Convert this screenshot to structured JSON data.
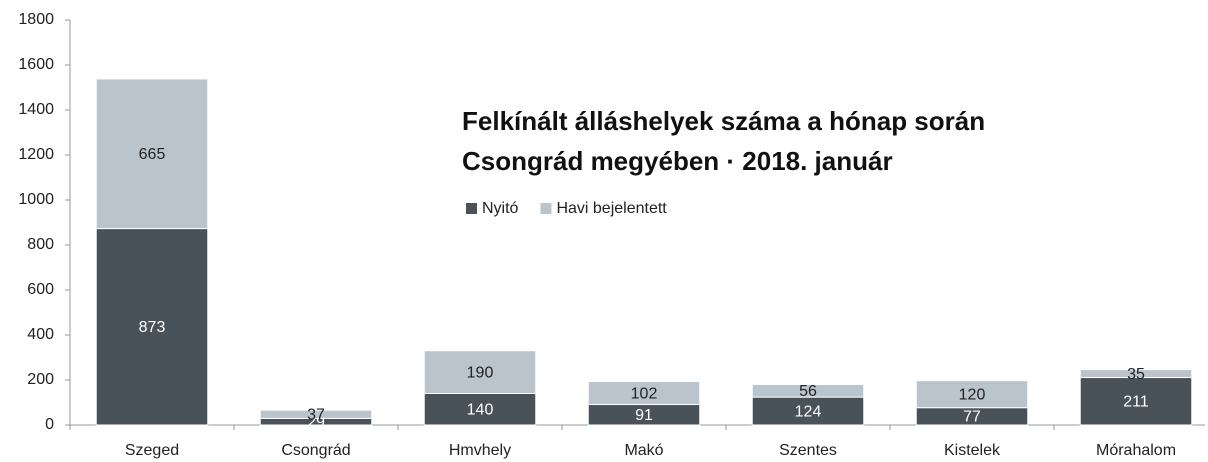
{
  "chart_data": {
    "type": "stacked_bar",
    "title": [
      "Felkínált álláshelyek száma a hónap során",
      "Csongrád megyében · 2018. január"
    ],
    "categories": [
      "Szeged",
      "Csongrád",
      "Hmvhely",
      "Makó",
      "Szentes",
      "Kistelek",
      "Mórahalom"
    ],
    "series": [
      {
        "name": "Nyitó",
        "color": "#4a5259",
        "values": [
          873,
          29,
          140,
          91,
          124,
          77,
          211
        ]
      },
      {
        "name": "Havi bejelentett",
        "color": "#b9c4cc",
        "values": [
          665,
          37,
          190,
          102,
          56,
          120,
          35
        ]
      }
    ],
    "ylim": [
      0,
      1800
    ],
    "yticks": [
      0,
      200,
      400,
      600,
      800,
      1000,
      1200,
      1400,
      1600,
      1800
    ],
    "grid": false
  }
}
